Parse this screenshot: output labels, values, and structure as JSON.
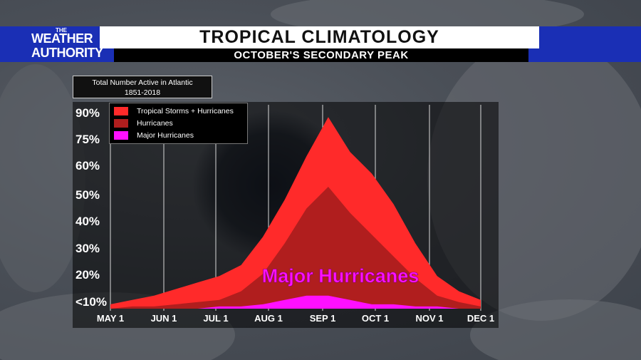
{
  "logo": {
    "small": "THE",
    "line1": "WEATHER",
    "line2": "AUTHORITY"
  },
  "header": {
    "title": "TROPICAL CLIMATOLOGY",
    "subtitle": "OCTOBER'S SECONDARY PEAK"
  },
  "info": {
    "line1": "Total Number Active in Atlantic",
    "line2": "1851-2018"
  },
  "annotation": "Major Hurricanes",
  "colors": {
    "tropical": "#ff2a2a",
    "hurricanes": "#b01e1e",
    "major": "#ff10ff",
    "band": "#1a2fb5"
  },
  "legend": [
    {
      "label": "Tropical Storms + Hurricanes",
      "color": "#ff2a2a"
    },
    {
      "label": "Hurricanes",
      "color": "#b01e1e"
    },
    {
      "label": "Major Hurricanes",
      "color": "#ff10ff"
    }
  ],
  "chart_data": {
    "type": "area",
    "y_tick_labels": [
      "<10%",
      "20%",
      "30%",
      "40%",
      "50%",
      "60%",
      "75%",
      "90%"
    ],
    "x_tick_labels": [
      "MAY 1",
      "JUN 1",
      "JUL 1",
      "AUG 1",
      "SEP 1",
      "OCT 1",
      "NOV 1",
      "DEC 1"
    ],
    "x": [
      "May 1",
      "May 15",
      "Jun 1",
      "Jun 15",
      "Jul 1",
      "Jul 15",
      "Aug 1",
      "Aug 10",
      "Aug 20",
      "Sep 1",
      "Sep 10",
      "Sep 20",
      "Oct 1",
      "Oct 10",
      "Oct 20",
      "Nov 1",
      "Nov 15",
      "Dec 1"
    ],
    "series": [
      {
        "name": "Tropical Storms + Hurricanes",
        "values": [
          2,
          4,
          6,
          9,
          12,
          15,
          20,
          33,
          50,
          70,
          88,
          72,
          62,
          48,
          30,
          15,
          8,
          4
        ]
      },
      {
        "name": "Hurricanes",
        "values": [
          0,
          1,
          1,
          2,
          3,
          4,
          8,
          16,
          30,
          46,
          56,
          44,
          34,
          24,
          14,
          6,
          3,
          1
        ]
      },
      {
        "name": "Major Hurricanes",
        "values": [
          0,
          0,
          0,
          0,
          0,
          1,
          1,
          2,
          4,
          6,
          6,
          4,
          2,
          2,
          1,
          1,
          0,
          0
        ]
      }
    ],
    "grid": true,
    "legend_position": "top-left"
  }
}
